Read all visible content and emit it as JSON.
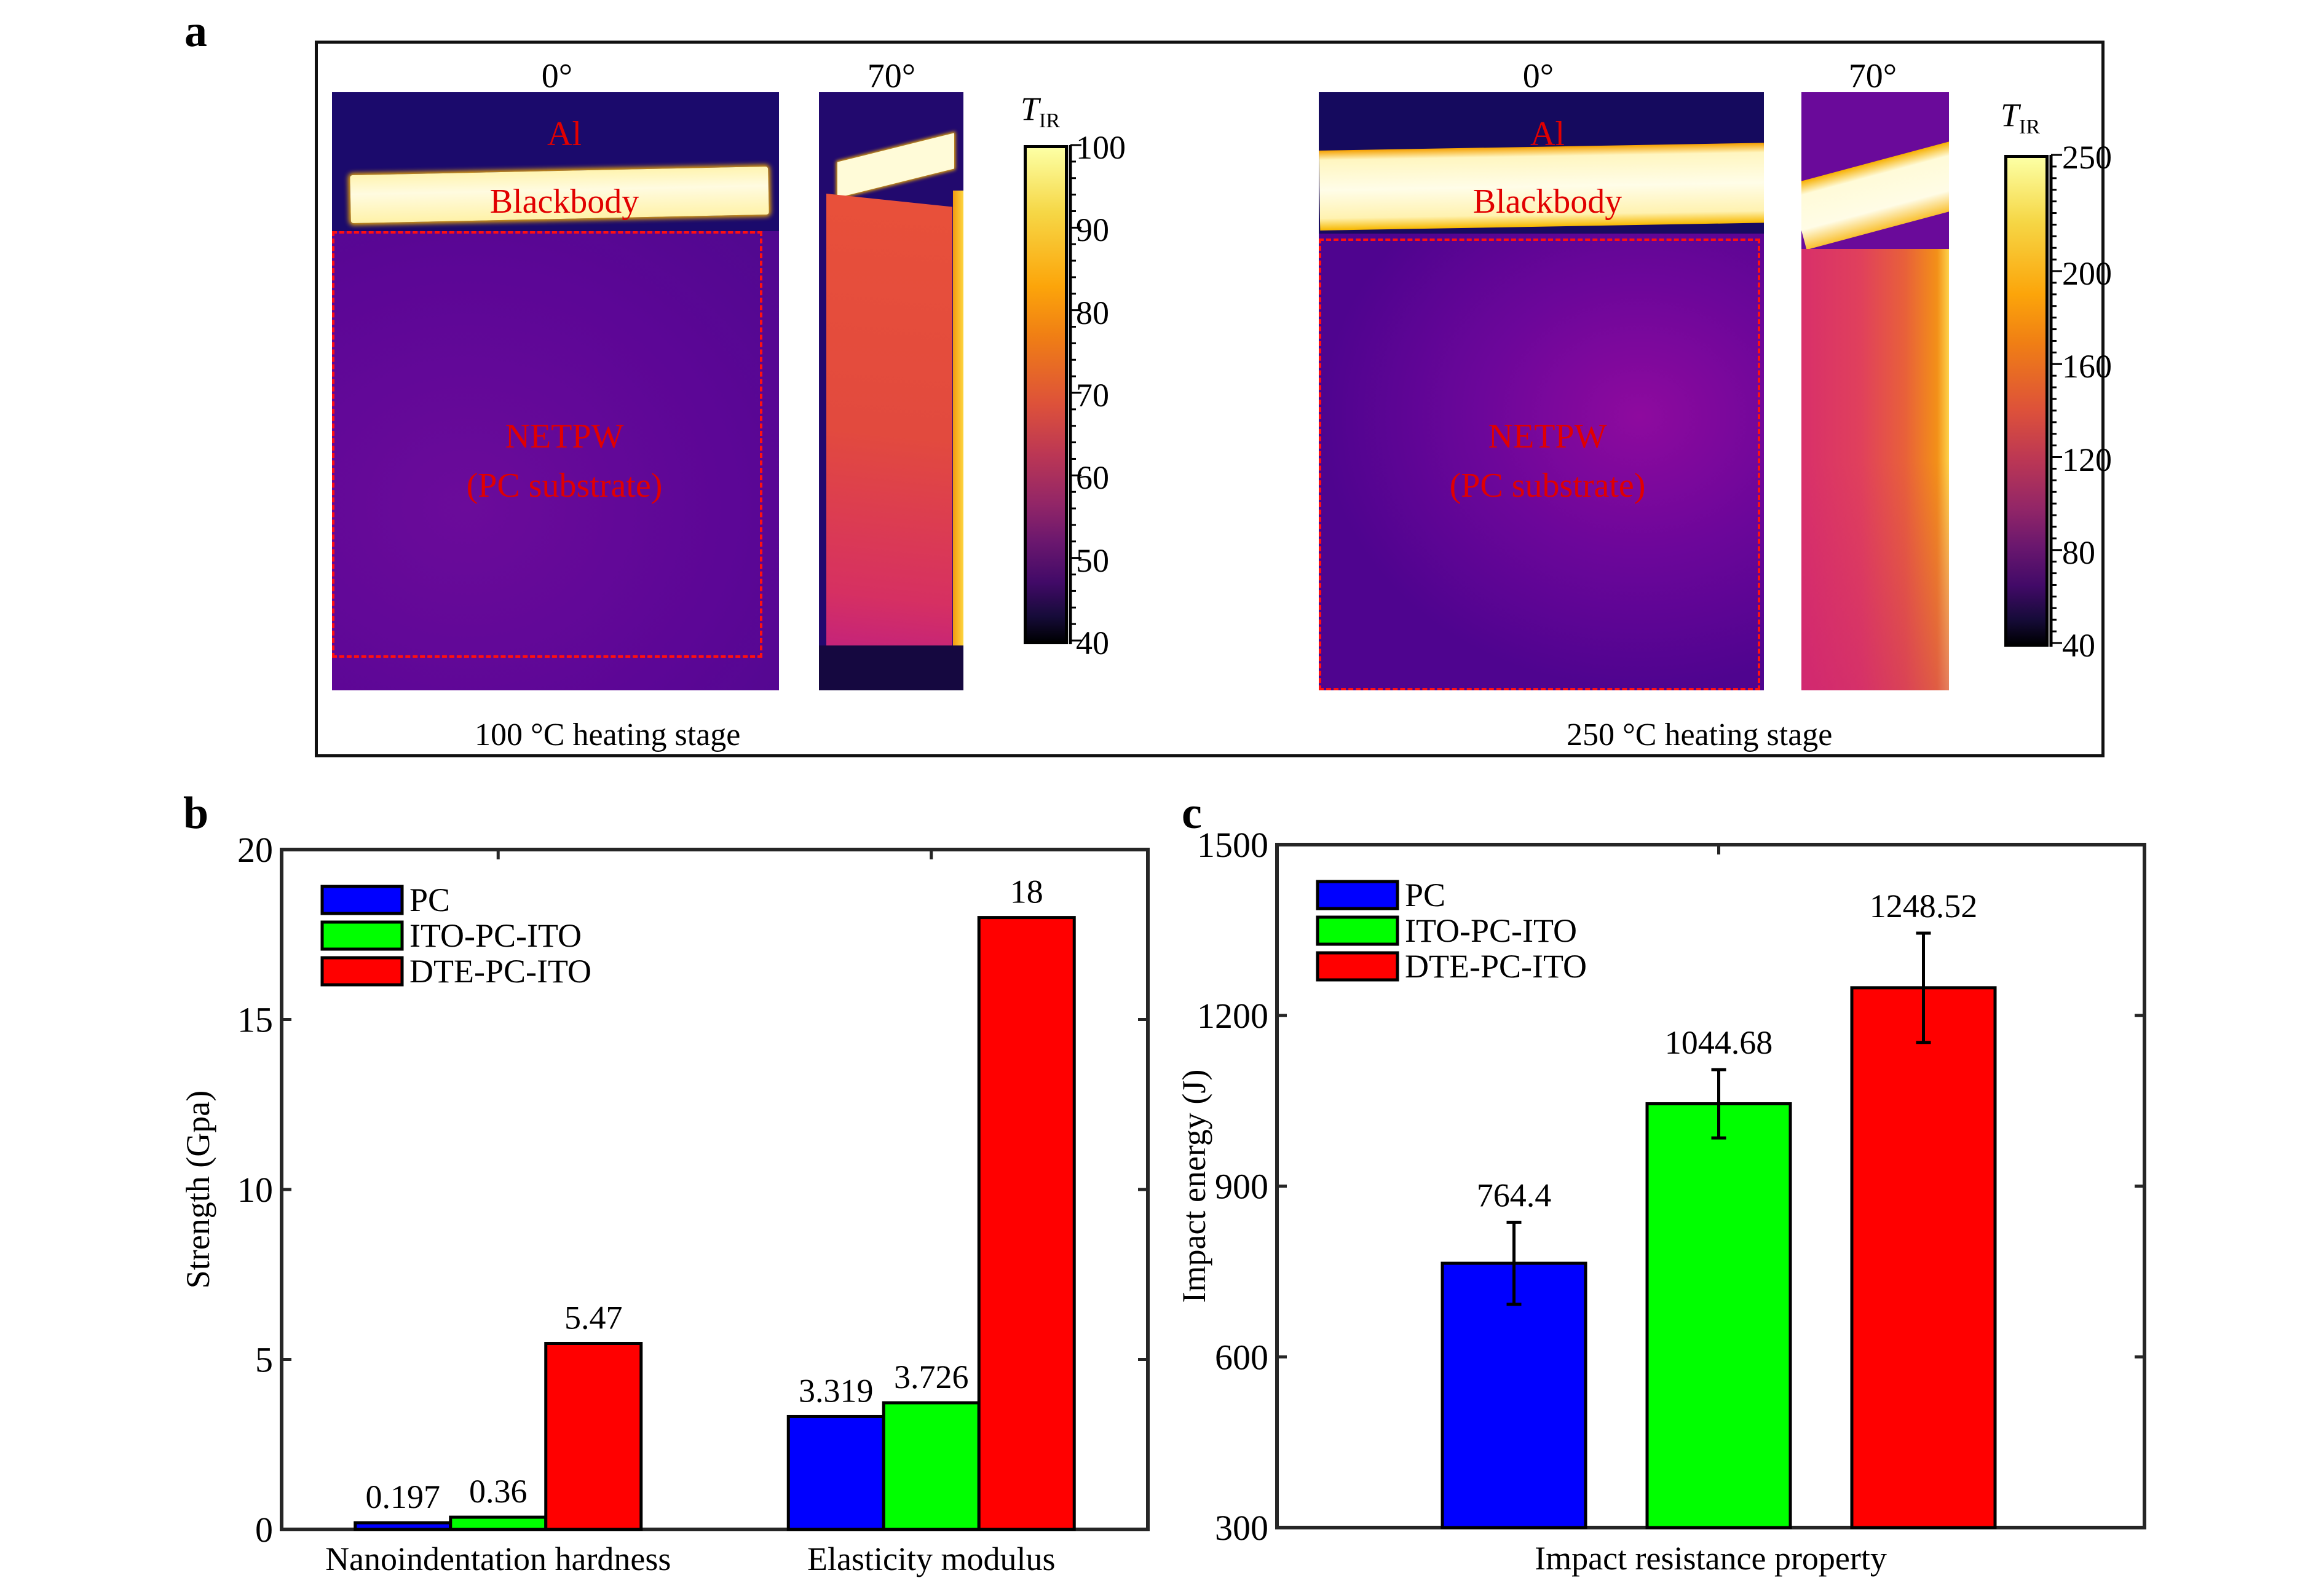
{
  "panels": {
    "a": {
      "letter": "a",
      "groups": [
        {
          "caption": "100 °C heating stage",
          "views": [
            {
              "angle": "0°",
              "labels": [
                "Al",
                "Blackbody",
                "NETPW",
                "(PC substrate)"
              ]
            },
            {
              "angle": "70°"
            }
          ],
          "colorbar": {
            "title": "T",
            "title_sub": "IR",
            "ticks": [
              "100",
              "90",
              "80",
              "70",
              "60",
              "50",
              "40"
            ],
            "range": [
              40,
              100
            ],
            "colormap": "inferno"
          }
        },
        {
          "caption": "250 °C heating stage",
          "views": [
            {
              "angle": "0°",
              "labels": [
                "Al",
                "Blackbody",
                "NETPW",
                "(PC substrate)"
              ]
            },
            {
              "angle": "70°"
            }
          ],
          "colorbar": {
            "title": "T",
            "title_sub": "IR",
            "ticks": [
              "250",
              "200",
              "160",
              "120",
              "80",
              "40"
            ],
            "range": [
              40,
              250
            ],
            "colormap": "inferno"
          }
        }
      ]
    },
    "b": {
      "letter": "b"
    },
    "c": {
      "letter": "c"
    }
  },
  "colors": {
    "PC": "#0000ff",
    "ITO-PC-ITO": "#00ff00",
    "DTE-PC-ITO": "#ff0000",
    "label_red": "#e10000"
  },
  "chart_data": [
    {
      "id": "b",
      "type": "bar",
      "title": "",
      "xlabel": "",
      "ylabel": "Strength (Gpa)",
      "categories": [
        "Nanoindentation hardness",
        "Elasticity modulus"
      ],
      "series": [
        {
          "name": "PC",
          "values": [
            0.197,
            3.319
          ],
          "labels": [
            "0.197",
            "3.319"
          ]
        },
        {
          "name": "ITO-PC-ITO",
          "values": [
            0.36,
            3.726
          ],
          "labels": [
            "0.36",
            "3.726"
          ]
        },
        {
          "name": "DTE-PC-ITO",
          "values": [
            5.47,
            18
          ],
          "labels": [
            "5.47",
            "18"
          ]
        }
      ],
      "ylim": [
        0,
        20
      ],
      "yticks": [
        0,
        5,
        10,
        15,
        20
      ],
      "grid": false,
      "legend": "top-left"
    },
    {
      "id": "c",
      "type": "bar",
      "title": "",
      "xlabel": "Impact resistance property",
      "ylabel": "Impact energy (J)",
      "categories": [
        "Impact resistance property"
      ],
      "series": [
        {
          "name": "PC",
          "values": [
            764.4
          ],
          "labels": [
            "764.4"
          ],
          "error": [
            72
          ]
        },
        {
          "name": "ITO-PC-ITO",
          "values": [
            1044.68
          ],
          "labels": [
            "1044.68"
          ],
          "error": [
            60
          ]
        },
        {
          "name": "DTE-PC-ITO",
          "values": [
            1248.52
          ],
          "labels": [
            "1248.52"
          ],
          "error": [
            96
          ]
        }
      ],
      "ylim": [
        300,
        1500
      ],
      "yticks": [
        300,
        600,
        900,
        1200,
        1500
      ],
      "grid": false,
      "legend": "top-left"
    }
  ]
}
